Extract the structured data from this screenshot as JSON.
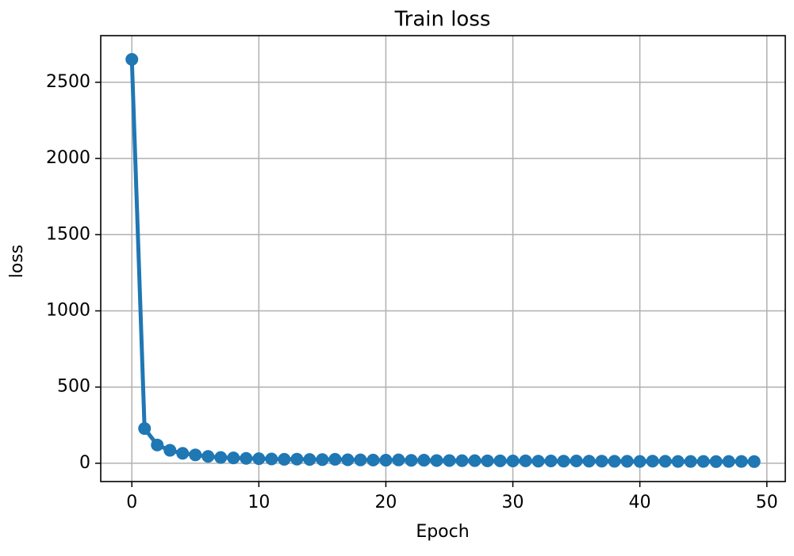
{
  "chart_data": {
    "type": "line",
    "title": "Train loss",
    "xlabel": "Epoch",
    "ylabel": "loss",
    "x": [
      0,
      1,
      2,
      3,
      4,
      5,
      6,
      7,
      8,
      9,
      10,
      11,
      12,
      13,
      14,
      15,
      16,
      17,
      18,
      19,
      20,
      21,
      22,
      23,
      24,
      25,
      26,
      27,
      28,
      29,
      30,
      31,
      32,
      33,
      34,
      35,
      36,
      37,
      38,
      39,
      40,
      41,
      42,
      43,
      44,
      45,
      46,
      47,
      48,
      49
    ],
    "series": [
      {
        "name": "loss",
        "color": "#1f77b4",
        "values": [
          2650,
          228,
          120,
          85,
          65,
          55,
          45,
          38,
          35,
          32,
          30,
          28,
          26,
          27,
          25,
          24,
          26,
          23,
          22,
          21,
          20,
          22,
          19,
          20,
          18,
          18,
          17,
          17,
          16,
          16,
          15,
          16,
          14,
          15,
          14,
          15,
          14,
          14,
          13,
          13,
          12,
          14,
          13,
          12,
          12,
          12,
          11,
          12,
          12,
          11
        ]
      }
    ],
    "xlim": [
      -2.45,
      51.45
    ],
    "ylim": [
      -120,
      2806
    ],
    "xticks": [
      0,
      10,
      20,
      30,
      40,
      50
    ],
    "yticks": [
      0,
      500,
      1000,
      1500,
      2000,
      2500
    ],
    "grid": true
  }
}
